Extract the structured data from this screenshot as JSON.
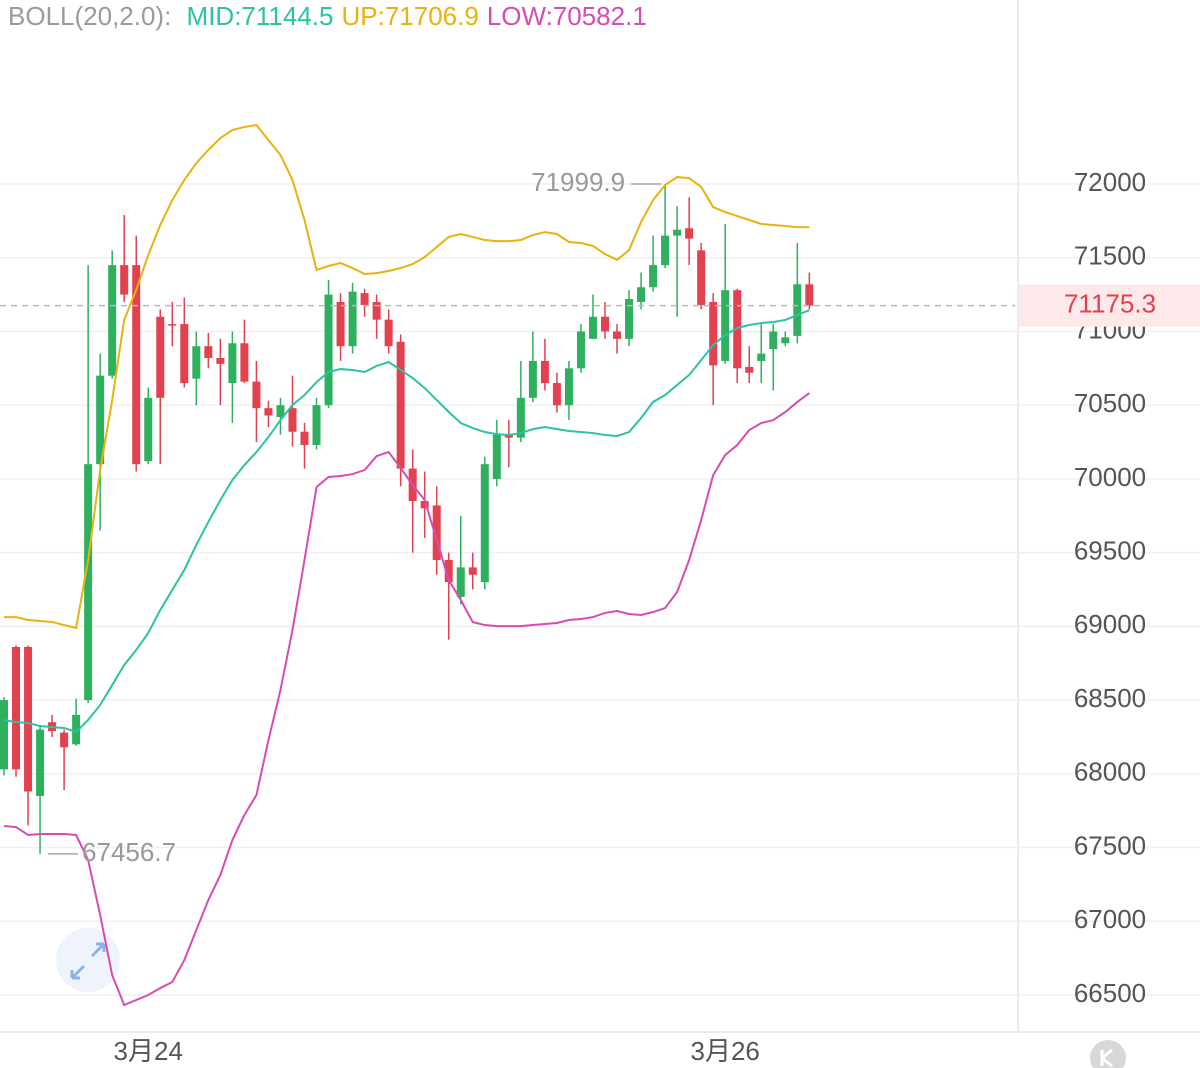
{
  "chart_data": {
    "type": "candlestick",
    "indicator_title": "BOLL(20,2.0):",
    "categories": [
      null,
      null,
      null,
      null,
      null,
      null,
      null,
      null,
      null,
      null,
      null,
      null,
      "3月24",
      null,
      null,
      null,
      null,
      null,
      null,
      null,
      null,
      null,
      null,
      null,
      null,
      null,
      null,
      null,
      null,
      null,
      null,
      null,
      null,
      null,
      null,
      null,
      null,
      null,
      null,
      null,
      null,
      null,
      null,
      null,
      null,
      null,
      null,
      null,
      null,
      null,
      null,
      null,
      null,
      null,
      null,
      null,
      null,
      null,
      null,
      null,
      "3月26",
      null,
      null,
      null,
      null,
      null,
      null,
      null
    ],
    "open": [
      68030,
      68860,
      68860,
      67850,
      68350,
      68280,
      68200,
      68500,
      70100,
      70700,
      71450,
      71450,
      70120,
      71100,
      71050,
      71050,
      70680,
      70900,
      70820,
      70650,
      70920,
      70660,
      70480,
      70420,
      70480,
      70320,
      70230,
      70500,
      71200,
      70900,
      71260,
      71200,
      71080,
      70930,
      70070,
      69850,
      69820,
      69450,
      69200,
      69400,
      69300,
      70000,
      70300,
      70280,
      70550,
      70800,
      70650,
      70500,
      70750,
      70950,
      71100,
      71000,
      70950,
      71200,
      71300,
      71450,
      71650,
      71700,
      71550,
      71200,
      70800,
      71280,
      70760,
      70800,
      70880,
      70920,
      70970,
      71320
    ],
    "high": [
      68520,
      68870,
      68870,
      68330,
      68400,
      68300,
      68510,
      71450,
      70850,
      71550,
      71790,
      71650,
      70620,
      71150,
      71200,
      71230,
      71000,
      70990,
      70950,
      71000,
      71080,
      70800,
      70530,
      70550,
      70700,
      70380,
      70550,
      71350,
      71260,
      71330,
      71290,
      71250,
      71150,
      70980,
      70200,
      70050,
      69950,
      69500,
      69750,
      69500,
      70150,
      70400,
      70400,
      70800,
      71000,
      70950,
      70720,
      70800,
      71050,
      71250,
      71200,
      71050,
      71280,
      71400,
      71650,
      71999.9,
      71850,
      71910,
      71600,
      71260,
      71730,
      71290,
      70900,
      71050,
      71050,
      71000,
      71600,
      71400
    ],
    "low": [
      67990,
      67980,
      67650,
      67456.7,
      68250,
      67890,
      68190,
      68480,
      69650,
      70680,
      71200,
      70050,
      70100,
      70100,
      70900,
      70620,
      70500,
      70750,
      70500,
      70380,
      70650,
      70250,
      70350,
      70300,
      70220,
      70070,
      70200,
      70480,
      70800,
      70850,
      71100,
      70950,
      70850,
      69950,
      69500,
      69600,
      69350,
      68910,
      69150,
      69250,
      69250,
      69950,
      70080,
      70250,
      70520,
      70600,
      70450,
      70400,
      70720,
      70950,
      70950,
      70850,
      70900,
      71150,
      71270,
      71430,
      71100,
      71450,
      71150,
      70500,
      70780,
      70650,
      70650,
      70650,
      70600,
      70900,
      70920,
      71150
    ],
    "close": [
      68500,
      68030,
      67880,
      68300,
      68290,
      68180,
      68400,
      70100,
      70700,
      71450,
      71250,
      70100,
      70550,
      70550,
      71040,
      70650,
      70900,
      70820,
      70780,
      70920,
      70660,
      70480,
      70430,
      70500,
      70320,
      70230,
      70500,
      71250,
      70900,
      71270,
      71180,
      71080,
      70900,
      70070,
      69850,
      69800,
      69450,
      69300,
      69400,
      69350,
      70100,
      70300,
      70280,
      70550,
      70800,
      70650,
      70500,
      70750,
      71000,
      71100,
      71000,
      70950,
      71220,
      71300,
      71450,
      71650,
      71690,
      71630,
      71180,
      70770,
      71280,
      70750,
      70720,
      70850,
      71000,
      70960,
      71320,
      71175.3
    ],
    "up_color": "#2eb05e",
    "down_color": "#e2414f",
    "series": [
      {
        "label": "MID:71144.5",
        "color": "#2cc2a4",
        "values": [
          68365,
          68351,
          68345,
          68324,
          68317,
          68311,
          68284,
          68365,
          68467,
          68602,
          68738,
          68840,
          68955,
          69111,
          69247,
          69382,
          69552,
          69708,
          69857,
          69993,
          70094,
          70182,
          70284,
          70399,
          70501,
          70569,
          70657,
          70725,
          70745,
          70739,
          70725,
          70766,
          70793,
          70739,
          70684,
          70616,
          70535,
          70454,
          70379,
          70345,
          70318,
          70304,
          70298,
          70311,
          70338,
          70352,
          70338,
          70325,
          70318,
          70311,
          70298,
          70291,
          70318,
          70413,
          70522,
          70569,
          70637,
          70705,
          70806,
          70908,
          70976,
          71023,
          71044,
          71057,
          71064,
          71078,
          71112,
          71144.5
        ]
      },
      {
        "label": "UP:71706.9",
        "color": "#e8b20f",
        "values": [
          69063,
          69063,
          69043,
          69036,
          69030,
          69009,
          68989,
          69450,
          70060,
          70535,
          71078,
          71281,
          71518,
          71722,
          71891,
          72027,
          72142,
          72231,
          72312,
          72366,
          72387,
          72400,
          72298,
          72197,
          72027,
          71756,
          71417,
          71444,
          71464,
          71430,
          71390,
          71396,
          71410,
          71430,
          71457,
          71505,
          71573,
          71641,
          71661,
          71641,
          71620,
          71613,
          71613,
          71620,
          71654,
          71674,
          71661,
          71607,
          71600,
          71580,
          71525,
          71485,
          71552,
          71742,
          71891,
          71993,
          72047,
          72040,
          71980,
          71844,
          71810,
          71783,
          71756,
          71729,
          71722,
          71715,
          71708,
          71706.9
        ]
      },
      {
        "label": "LOW:70582.1",
        "color": "#d64cb4",
        "values": [
          67646,
          67639,
          67585,
          67592,
          67592,
          67592,
          67585,
          67415,
          67042,
          66635,
          66432,
          66466,
          66500,
          66547,
          66588,
          66737,
          66941,
          67144,
          67314,
          67551,
          67721,
          67856,
          68229,
          68568,
          68975,
          69450,
          69945,
          70013,
          70020,
          70033,
          70060,
          70155,
          70182,
          70074,
          69959,
          69857,
          69586,
          69314,
          69179,
          69029,
          69009,
          69002,
          69002,
          69002,
          69009,
          69016,
          69023,
          69043,
          69050,
          69063,
          69091,
          69104,
          69084,
          69077,
          69097,
          69124,
          69233,
          69450,
          69721,
          70026,
          70162,
          70230,
          70332,
          70379,
          70399,
          70454,
          70522,
          70582.1
        ]
      }
    ],
    "high_marker": 71999.9,
    "low_marker": 67456.7,
    "last_price": 71175.3,
    "ylim": [
      66249,
      73248
    ],
    "yticks": [
      66500,
      67000,
      67500,
      68000,
      68500,
      69000,
      69500,
      70000,
      70500,
      71000,
      71500,
      72000
    ],
    "grid": true
  }
}
